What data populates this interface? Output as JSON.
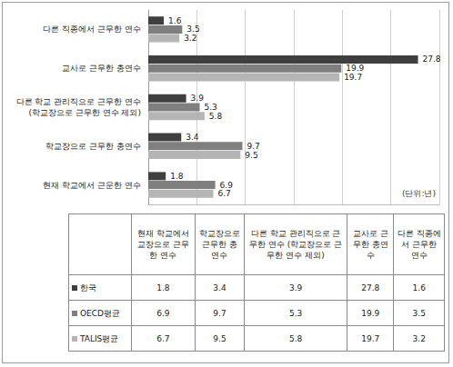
{
  "chart_data": {
    "type": "bar",
    "orientation": "horizontal",
    "categories": [
      "다른 직종에서 근무한 연수",
      "교사로 근무한 총연수",
      "다른 학교 관리직으로 근무한 연수\n(학교장으로 근무한 연수 제외)",
      "학교장으로 근무한 총연수",
      "현재 학교에서 근문한 연수"
    ],
    "series": [
      {
        "name": "한국",
        "color": "#3f3f3f",
        "values": [
          1.6,
          27.8,
          3.9,
          3.4,
          1.8
        ]
      },
      {
        "name": "OECD평균",
        "color": "#7f7f7f",
        "values": [
          3.5,
          19.9,
          5.3,
          9.7,
          6.9
        ]
      },
      {
        "name": "TALIS평균",
        "color": "#b5b5b5",
        "values": [
          3.2,
          19.7,
          5.8,
          9.5,
          6.7
        ]
      }
    ],
    "xlim": [
      0,
      30
    ],
    "xticks": [
      0,
      5,
      10,
      15,
      20,
      25,
      30
    ],
    "grid": true,
    "data_labels": true,
    "tick_labels": "y",
    "annotations": [
      "(단위:년)"
    ]
  },
  "table": {
    "columns": [
      "현재 학교에서 교장으로 근무한 연수",
      "학교장으로 근무한 총연수",
      "다른 학교 관리직으로 근무한 연수 (학교장으로 근무한 연수 제외)",
      "교사로 근무한 총연수",
      "다른 직종에서 근무한 연수"
    ],
    "rows": [
      {
        "name": "한국",
        "values": [
          1.8,
          3.4,
          3.9,
          27.8,
          1.6
        ]
      },
      {
        "name": "OECD평균",
        "values": [
          6.9,
          9.7,
          5.3,
          19.9,
          3.5
        ]
      },
      {
        "name": "TALIS평균",
        "values": [
          6.7,
          9.5,
          5.8,
          19.7,
          3.2
        ]
      }
    ]
  }
}
